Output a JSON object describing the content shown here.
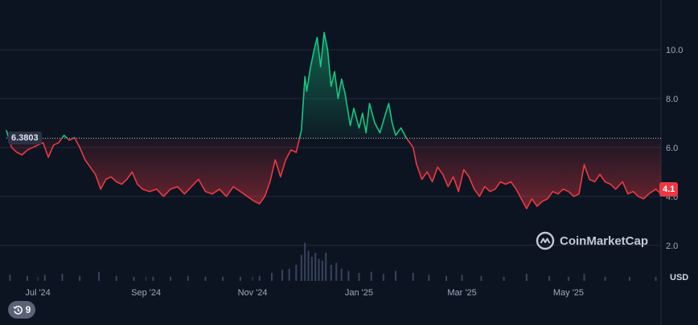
{
  "chart_data": {
    "type": "area",
    "reference_value": 6.3803,
    "reference_label": "6.3803",
    "last_value": 4.1,
    "last_label": "4.1",
    "currency": "USD",
    "y_ticks": [
      2.0,
      4.0,
      6.0,
      8.0,
      10.0
    ],
    "y_tick_labels": [
      "2.0",
      "4.0",
      "6.0",
      "8.0",
      "10.0"
    ],
    "ylim": [
      0.55,
      11.7
    ],
    "x_range": [
      "2024-06-13",
      "2025-06-23"
    ],
    "x_ticks": [
      {
        "date": "2024-07-01",
        "label": "Jul '24"
      },
      {
        "date": "2024-09-01",
        "label": "Sep '24"
      },
      {
        "date": "2024-11-01",
        "label": "Nov '24"
      },
      {
        "date": "2025-01-01",
        "label": "Jan '25"
      },
      {
        "date": "2025-03-01",
        "label": "Mar '25"
      },
      {
        "date": "2025-05-01",
        "label": "May '25"
      }
    ],
    "grid": true,
    "colors": {
      "above": "#16c784",
      "below": "#ea3943",
      "grid": "#222a3a",
      "volume": "#37445e"
    },
    "series": [
      {
        "values": [
          [
            "2024-06-13",
            6.7
          ],
          [
            "2024-06-16",
            6.0
          ],
          [
            "2024-06-19",
            5.8
          ],
          [
            "2024-06-22",
            5.7
          ],
          [
            "2024-06-25",
            5.9
          ],
          [
            "2024-06-28",
            6.0
          ],
          [
            "2024-07-01",
            6.1
          ],
          [
            "2024-07-04",
            6.2
          ],
          [
            "2024-07-07",
            5.6
          ],
          [
            "2024-07-10",
            6.1
          ],
          [
            "2024-07-13",
            6.2
          ],
          [
            "2024-07-16",
            6.5
          ],
          [
            "2024-07-19",
            6.3
          ],
          [
            "2024-07-22",
            6.4
          ],
          [
            "2024-07-25",
            6.0
          ],
          [
            "2024-07-28",
            5.5
          ],
          [
            "2024-07-31",
            5.2
          ],
          [
            "2024-08-03",
            4.9
          ],
          [
            "2024-08-06",
            4.3
          ],
          [
            "2024-08-09",
            4.7
          ],
          [
            "2024-08-12",
            4.8
          ],
          [
            "2024-08-15",
            4.6
          ],
          [
            "2024-08-18",
            4.5
          ],
          [
            "2024-08-21",
            4.7
          ],
          [
            "2024-08-24",
            5.0
          ],
          [
            "2024-08-27",
            4.5
          ],
          [
            "2024-08-30",
            4.3
          ],
          [
            "2024-09-03",
            4.2
          ],
          [
            "2024-09-07",
            4.3
          ],
          [
            "2024-09-11",
            4.0
          ],
          [
            "2024-09-15",
            4.3
          ],
          [
            "2024-09-19",
            4.4
          ],
          [
            "2024-09-23",
            4.1
          ],
          [
            "2024-09-27",
            4.4
          ],
          [
            "2024-10-01",
            4.7
          ],
          [
            "2024-10-05",
            4.2
          ],
          [
            "2024-10-09",
            4.1
          ],
          [
            "2024-10-13",
            4.3
          ],
          [
            "2024-10-17",
            4.0
          ],
          [
            "2024-10-21",
            4.4
          ],
          [
            "2024-10-25",
            4.2
          ],
          [
            "2024-10-29",
            4.0
          ],
          [
            "2024-11-02",
            3.8
          ],
          [
            "2024-11-05",
            3.7
          ],
          [
            "2024-11-08",
            4.0
          ],
          [
            "2024-11-11",
            4.6
          ],
          [
            "2024-11-14",
            5.5
          ],
          [
            "2024-11-17",
            4.8
          ],
          [
            "2024-11-20",
            5.5
          ],
          [
            "2024-11-23",
            5.9
          ],
          [
            "2024-11-26",
            5.8
          ],
          [
            "2024-11-29",
            6.7
          ],
          [
            "2024-12-01",
            8.9
          ],
          [
            "2024-12-02",
            8.3
          ],
          [
            "2024-12-04",
            9.2
          ],
          [
            "2024-12-06",
            9.9
          ],
          [
            "2024-12-08",
            10.5
          ],
          [
            "2024-12-10",
            9.3
          ],
          [
            "2024-12-12",
            10.7
          ],
          [
            "2024-12-14",
            10.0
          ],
          [
            "2024-12-16",
            8.5
          ],
          [
            "2024-12-18",
            9.1
          ],
          [
            "2024-12-20",
            8.0
          ],
          [
            "2024-12-22",
            8.8
          ],
          [
            "2024-12-24",
            8.2
          ],
          [
            "2024-12-27",
            6.9
          ],
          [
            "2024-12-29",
            7.6
          ],
          [
            "2025-01-01",
            6.8
          ],
          [
            "2025-01-03",
            7.4
          ],
          [
            "2025-01-05",
            6.6
          ],
          [
            "2025-01-07",
            7.8
          ],
          [
            "2025-01-10",
            7.0
          ],
          [
            "2025-01-13",
            6.6
          ],
          [
            "2025-01-15",
            7.1
          ],
          [
            "2025-01-18",
            7.8
          ],
          [
            "2025-01-20",
            7.0
          ],
          [
            "2025-01-22",
            6.5
          ],
          [
            "2025-01-25",
            6.8
          ],
          [
            "2025-01-28",
            6.4
          ],
          [
            "2025-02-01",
            6.0
          ],
          [
            "2025-02-03",
            5.3
          ],
          [
            "2025-02-06",
            4.7
          ],
          [
            "2025-02-09",
            5.0
          ],
          [
            "2025-02-12",
            4.6
          ],
          [
            "2025-02-15",
            5.2
          ],
          [
            "2025-02-18",
            4.9
          ],
          [
            "2025-02-21",
            4.4
          ],
          [
            "2025-02-24",
            4.8
          ],
          [
            "2025-02-27",
            4.2
          ],
          [
            "2025-03-02",
            5.1
          ],
          [
            "2025-03-05",
            4.8
          ],
          [
            "2025-03-08",
            4.3
          ],
          [
            "2025-03-11",
            4.0
          ],
          [
            "2025-03-14",
            4.4
          ],
          [
            "2025-03-17",
            4.2
          ],
          [
            "2025-03-20",
            4.3
          ],
          [
            "2025-03-23",
            4.6
          ],
          [
            "2025-03-26",
            4.5
          ],
          [
            "2025-03-29",
            4.6
          ],
          [
            "2025-04-01",
            4.3
          ],
          [
            "2025-04-04",
            3.9
          ],
          [
            "2025-04-07",
            3.5
          ],
          [
            "2025-04-10",
            3.9
          ],
          [
            "2025-04-13",
            3.6
          ],
          [
            "2025-04-16",
            3.8
          ],
          [
            "2025-04-19",
            3.9
          ],
          [
            "2025-04-22",
            4.2
          ],
          [
            "2025-04-25",
            4.1
          ],
          [
            "2025-04-28",
            4.3
          ],
          [
            "2025-05-01",
            4.2
          ],
          [
            "2025-05-04",
            4.0
          ],
          [
            "2025-05-07",
            4.1
          ],
          [
            "2025-05-10",
            5.3
          ],
          [
            "2025-05-13",
            4.7
          ],
          [
            "2025-05-16",
            4.6
          ],
          [
            "2025-05-19",
            4.9
          ],
          [
            "2025-05-22",
            4.6
          ],
          [
            "2025-05-25",
            4.5
          ],
          [
            "2025-05-28",
            4.3
          ],
          [
            "2025-06-01",
            4.6
          ],
          [
            "2025-06-04",
            4.1
          ],
          [
            "2025-06-07",
            4.2
          ],
          [
            "2025-06-10",
            4.0
          ],
          [
            "2025-06-13",
            3.9
          ],
          [
            "2025-06-16",
            4.1
          ],
          [
            "2025-06-20",
            4.3
          ],
          [
            "2025-06-23",
            4.1
          ]
        ]
      }
    ],
    "volume": [
      [
        "2024-06-15",
        0.3
      ],
      [
        "2024-06-25",
        0.25
      ],
      [
        "2024-07-05",
        0.3
      ],
      [
        "2024-07-15",
        0.35
      ],
      [
        "2024-07-25",
        0.25
      ],
      [
        "2024-08-05",
        0.45
      ],
      [
        "2024-08-15",
        0.25
      ],
      [
        "2024-08-25",
        0.2
      ],
      [
        "2024-09-05",
        0.2
      ],
      [
        "2024-09-15",
        0.2
      ],
      [
        "2024-09-25",
        0.25
      ],
      [
        "2024-10-05",
        0.2
      ],
      [
        "2024-10-15",
        0.2
      ],
      [
        "2024-10-25",
        0.2
      ],
      [
        "2024-11-05",
        0.25
      ],
      [
        "2024-11-12",
        0.4
      ],
      [
        "2024-11-18",
        0.55
      ],
      [
        "2024-11-22",
        0.6
      ],
      [
        "2024-11-26",
        0.8
      ],
      [
        "2024-11-29",
        1.3
      ],
      [
        "2024-12-01",
        1.9
      ],
      [
        "2024-12-03",
        1.5
      ],
      [
        "2024-12-05",
        1.2
      ],
      [
        "2024-12-07",
        1.4
      ],
      [
        "2024-12-09",
        1.1
      ],
      [
        "2024-12-11",
        1.0
      ],
      [
        "2024-12-13",
        1.4
      ],
      [
        "2024-12-16",
        0.8
      ],
      [
        "2024-12-19",
        0.9
      ],
      [
        "2024-12-22",
        0.6
      ],
      [
        "2024-12-26",
        0.5
      ],
      [
        "2025-01-01",
        0.4
      ],
      [
        "2025-01-08",
        0.45
      ],
      [
        "2025-01-15",
        0.35
      ],
      [
        "2025-01-22",
        0.5
      ],
      [
        "2025-02-01",
        0.4
      ],
      [
        "2025-02-10",
        0.3
      ],
      [
        "2025-02-20",
        0.25
      ],
      [
        "2025-03-01",
        0.3
      ],
      [
        "2025-03-12",
        0.25
      ],
      [
        "2025-03-25",
        0.2
      ],
      [
        "2025-04-07",
        0.35
      ],
      [
        "2025-04-20",
        0.25
      ],
      [
        "2025-05-01",
        0.2
      ],
      [
        "2025-05-10",
        0.35
      ],
      [
        "2025-05-22",
        0.2
      ],
      [
        "2025-06-05",
        0.2
      ],
      [
        "2025-06-20",
        0.2
      ]
    ]
  },
  "branding": {
    "name": "CoinMarketCap"
  },
  "history_badge": {
    "count": "9",
    "icon": "history-icon"
  }
}
